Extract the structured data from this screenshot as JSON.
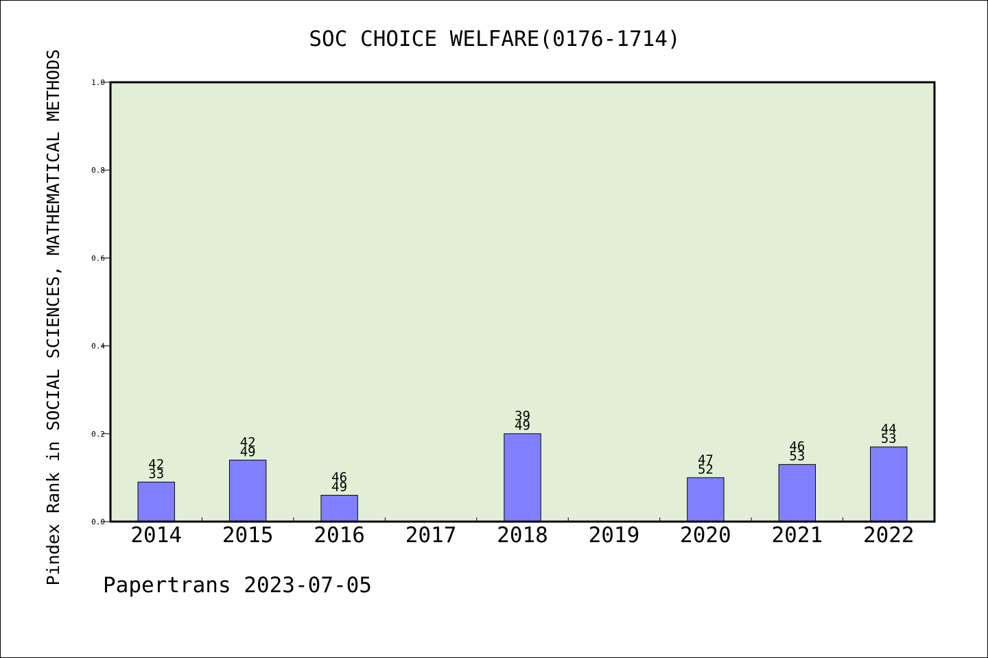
{
  "chart_data": {
    "type": "bar",
    "title": "SOC CHOICE WELFARE(0176-1714)",
    "ylabel": "Pindex Rank in SOCIAL SCIENCES, MATHEMATICAL METHODS",
    "xlabel": "",
    "footer": "Papertrans 2023-07-05",
    "ylim": [
      0,
      1.0
    ],
    "yticks": [
      "0.0",
      "0.2",
      "0.4",
      "0.6",
      "0.8",
      "1.0"
    ],
    "grid": false,
    "legend": "none",
    "categories": [
      "2014",
      "2015",
      "2016",
      "2017",
      "2018",
      "2019",
      "2020",
      "2021",
      "2022"
    ],
    "values": [
      0.09,
      0.14,
      0.06,
      null,
      0.2,
      null,
      0.1,
      0.13,
      0.17
    ],
    "labels_top": [
      "42",
      "42",
      "46",
      "",
      "39",
      "",
      "47",
      "46",
      "44"
    ],
    "labels_bottom": [
      "33",
      "49",
      "49",
      "",
      "49",
      "",
      "52",
      "53",
      "53"
    ],
    "colors": {
      "plot_background": "#e2efd6",
      "bar_fill": "#8080ff",
      "bar_stroke": "#000000"
    }
  }
}
